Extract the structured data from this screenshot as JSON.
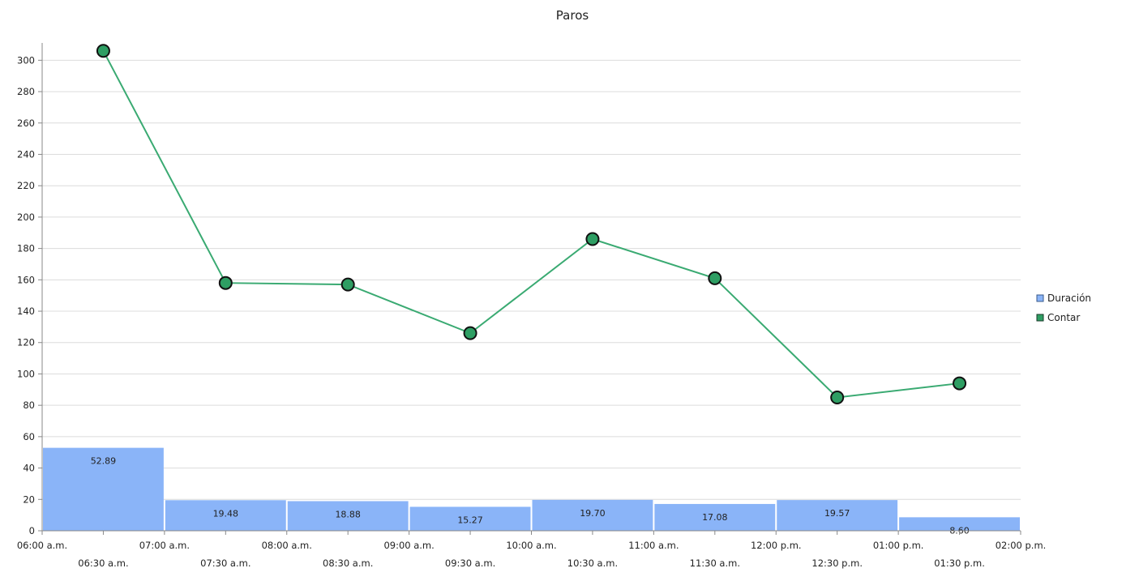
{
  "chart_data": {
    "type": "bar+line",
    "title": "Paros",
    "categories": [
      "06:30 a.m.",
      "07:30 a.m.",
      "08:30 a.m.",
      "09:30 a.m.",
      "10:30 a.m.",
      "11:30 a.m.",
      "12:30 p.m.",
      "01:30 p.m."
    ],
    "x_major_ticks": [
      "06:00 a.m.",
      "07:00 a.m.",
      "08:00 a.m.",
      "09:00 a.m.",
      "10:00 a.m.",
      "11:00 a.m.",
      "12:00 p.m.",
      "01:00 p.m.",
      "02:00 p.m."
    ],
    "y_ticks": [
      0,
      20,
      40,
      60,
      80,
      100,
      120,
      140,
      160,
      180,
      200,
      220,
      240,
      260,
      280,
      300
    ],
    "ylim": [
      0,
      310
    ],
    "grid": true,
    "legend_position": "right",
    "series": [
      {
        "name": "Duración",
        "type": "bar",
        "color": "#8ab4f8",
        "values": [
          52.89,
          19.48,
          18.88,
          15.27,
          19.7,
          17.08,
          19.57,
          8.6
        ],
        "labels": [
          "52.89",
          "19.48",
          "18.88",
          "15.27",
          "19.70",
          "17.08",
          "19.57",
          "8.60"
        ]
      },
      {
        "name": "Contar",
        "type": "line",
        "color": "#3aaa72",
        "marker_color": "#2e9e63",
        "values": [
          306,
          158,
          157,
          126,
          186,
          161,
          85,
          94
        ]
      }
    ]
  }
}
